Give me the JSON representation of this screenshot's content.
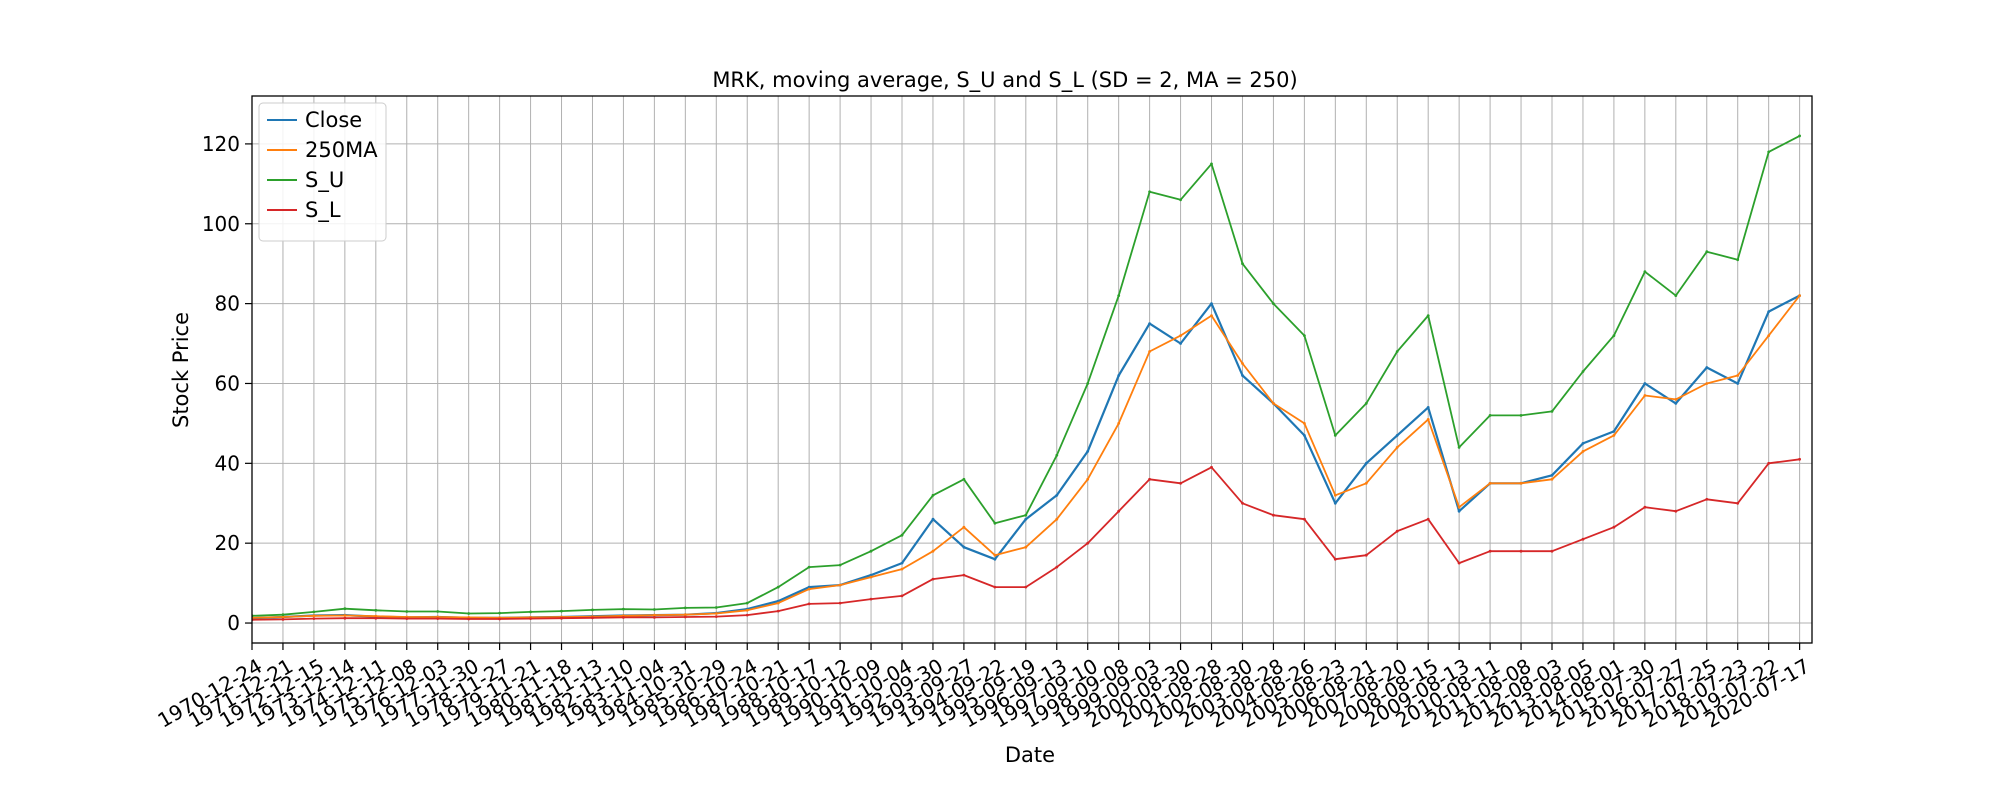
{
  "chart_data": {
    "type": "line",
    "title": "MRK, moving average, S_U and S_L (SD = 2, MA = 250)",
    "xlabel": "Date",
    "ylabel": "Stock Price",
    "ylim": [
      -5,
      132
    ],
    "yticks": [
      0,
      20,
      40,
      60,
      80,
      100,
      120
    ],
    "grid": true,
    "legend_position": "upper-left",
    "x": [
      "1970-12-24",
      "1971-12-21",
      "1972-12-15",
      "1973-12-14",
      "1974-12-11",
      "1975-12-08",
      "1976-12-03",
      "1977-11-30",
      "1978-11-27",
      "1979-11-21",
      "1980-11-18",
      "1981-11-13",
      "1982-11-10",
      "1983-11-04",
      "1984-10-31",
      "1985-10-29",
      "1986-10-24",
      "1987-10-21",
      "1988-10-17",
      "1989-10-12",
      "1990-10-09",
      "1991-10-04",
      "1992-09-30",
      "1993-09-27",
      "1994-09-22",
      "1995-09-19",
      "1996-09-13",
      "1997-09-10",
      "1998-09-08",
      "1999-09-03",
      "2000-08-30",
      "2001-08-28",
      "2002-08-30",
      "2003-08-28",
      "2004-08-26",
      "2005-08-23",
      "2006-08-21",
      "2007-08-20",
      "2008-08-15",
      "2009-08-13",
      "2010-08-11",
      "2011-08-08",
      "2012-08-03",
      "2013-08-05",
      "2014-08-01",
      "2015-07-30",
      "2016-07-27",
      "2017-07-25",
      "2018-07-23",
      "2019-07-22",
      "2020-07-17"
    ],
    "series": [
      {
        "name": "Close",
        "color": "#1f77b4",
        "values": [
          1.2,
          1.5,
          1.9,
          2.0,
          1.6,
          1.4,
          1.5,
          1.3,
          1.3,
          1.4,
          1.5,
          1.7,
          1.9,
          2.0,
          2.1,
          2.5,
          3.5,
          5.5,
          9.0,
          9.5,
          12.0,
          15.0,
          26.0,
          19.0,
          16.0,
          26.0,
          32.0,
          43.0,
          62.0,
          75.0,
          70.0,
          80.0,
          62.0,
          55.0,
          47.0,
          30.0,
          40.0,
          47.0,
          54.0,
          28.0,
          35.0,
          35.0,
          37.0,
          45.0,
          48.0,
          60.0,
          55.0,
          64.0,
          60.0,
          78.0,
          82.0
        ]
      },
      {
        "name": "250MA",
        "color": "#ff7f0e",
        "values": [
          1.3,
          1.5,
          1.8,
          1.9,
          1.7,
          1.5,
          1.5,
          1.4,
          1.3,
          1.4,
          1.5,
          1.6,
          1.8,
          2.0,
          2.1,
          2.4,
          3.2,
          5.0,
          8.5,
          9.5,
          11.5,
          13.5,
          18.0,
          24.0,
          17.0,
          19.0,
          26.0,
          36.0,
          50.0,
          68.0,
          72.0,
          77.0,
          65.0,
          55.0,
          50.0,
          32.0,
          35.0,
          44.0,
          51.0,
          29.0,
          35.0,
          35.0,
          36.0,
          43.0,
          47.0,
          57.0,
          56.0,
          60.0,
          62.0,
          72.0,
          82.0
        ]
      },
      {
        "name": "S_U",
        "color": "#2ca02c",
        "values": [
          1.8,
          2.1,
          2.8,
          3.6,
          3.2,
          2.9,
          2.9,
          2.4,
          2.5,
          2.8,
          3.0,
          3.3,
          3.5,
          3.4,
          3.8,
          3.9,
          5.0,
          9.0,
          14.0,
          14.5,
          18.0,
          22.0,
          32.0,
          36.0,
          25.0,
          27.0,
          42.0,
          60.0,
          82.0,
          108.0,
          106.0,
          115.0,
          90.0,
          80.0,
          72.0,
          47.0,
          55.0,
          68.0,
          77.0,
          44.0,
          52.0,
          52.0,
          53.0,
          63.0,
          72.0,
          88.0,
          82.0,
          93.0,
          91.0,
          118.0,
          122.0
        ]
      },
      {
        "name": "S_L",
        "color": "#d62728",
        "values": [
          0.8,
          0.9,
          1.1,
          1.2,
          1.2,
          1.1,
          1.1,
          1.0,
          1.0,
          1.1,
          1.2,
          1.3,
          1.4,
          1.4,
          1.5,
          1.6,
          2.0,
          3.0,
          4.8,
          5.0,
          6.0,
          6.8,
          11.0,
          12.0,
          9.0,
          9.0,
          14.0,
          20.0,
          28.0,
          36.0,
          35.0,
          39.0,
          30.0,
          27.0,
          26.0,
          16.0,
          17.0,
          23.0,
          26.0,
          15.0,
          18.0,
          18.0,
          18.0,
          21.0,
          24.0,
          29.0,
          28.0,
          31.0,
          30.0,
          40.0,
          41.0
        ]
      }
    ]
  }
}
